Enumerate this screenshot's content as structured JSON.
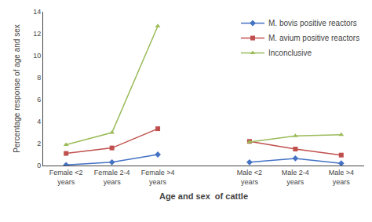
{
  "chart_data": {
    "type": "line",
    "categories": [
      "Female <2\nyears",
      "Female 2-4\nyears",
      "Female >4\nyears",
      null,
      "Male <2\nyears",
      "Male 2-4\nyears",
      "Male >4\nyears"
    ],
    "series": [
      {
        "name": "M. bovis positive reactors",
        "color": "#4472C4",
        "marker": "diamond",
        "values": [
          0.05,
          0.3,
          1.0,
          null,
          0.3,
          0.65,
          0.2
        ]
      },
      {
        "name": "M. avium positive reactors",
        "color": "#C0504D",
        "marker": "square",
        "values": [
          1.1,
          1.6,
          3.35,
          null,
          2.2,
          1.5,
          0.95
        ]
      },
      {
        "name": "Inconclusive",
        "color": "#9BBB59",
        "marker": "triangle-up",
        "values": [
          1.9,
          3.0,
          12.7,
          null,
          2.15,
          2.7,
          2.8
        ]
      }
    ],
    "xlabel": "Age and sex  of cattle",
    "ylabel": "Percentage response of age and sex",
    "ylim": [
      0,
      14
    ],
    "yticks": [
      0,
      2,
      4,
      6,
      8,
      10,
      12,
      14
    ],
    "grid": false,
    "legend": "upper right"
  }
}
